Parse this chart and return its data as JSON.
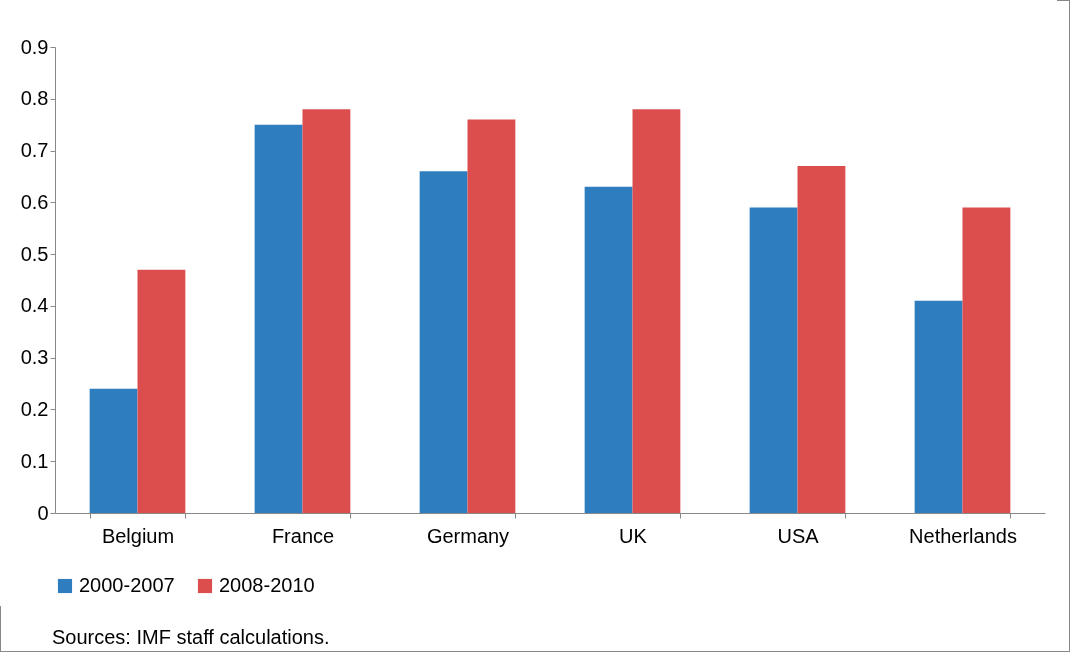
{
  "chart_data": {
    "type": "bar",
    "categories": [
      "Belgium",
      "France",
      "Germany",
      "UK",
      "USA",
      "Netherlands"
    ],
    "series": [
      {
        "name": "2000-2007",
        "color": "#2e7ebf",
        "values": [
          0.24,
          0.75,
          0.66,
          0.63,
          0.59,
          0.41
        ]
      },
      {
        "name": "2008-2010",
        "color": "#dc4e4e",
        "values": [
          0.47,
          0.78,
          0.76,
          0.78,
          0.67,
          0.59
        ]
      }
    ],
    "ylim": [
      0,
      0.9
    ],
    "yticks": [
      0,
      0.1,
      0.2,
      0.3,
      0.4,
      0.5,
      0.6,
      0.7,
      0.8,
      0.9
    ],
    "grid": false,
    "legend": "bottom",
    "annotations": [
      "Sources: IMF staff calculations."
    ]
  }
}
